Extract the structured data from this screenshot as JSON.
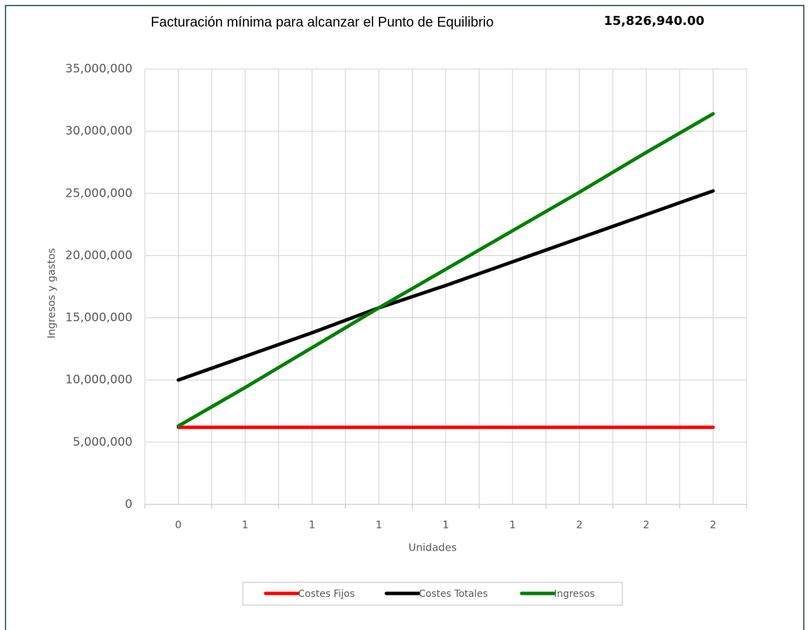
{
  "chart_data": {
    "type": "line",
    "title": "Facturación mínima para alcanzar el Punto de Equilibrio",
    "annotation": "15,826,940.00",
    "x_label": "Unidades",
    "y_label": "Ingresos y gastos",
    "categories": [
      "0",
      "1",
      "1",
      "1",
      "1",
      "1",
      "2",
      "2",
      "2"
    ],
    "series": [
      {
        "name": "Costes Fijos",
        "color": "#ff0000",
        "values": [
          6200000,
          6200000,
          6200000,
          6200000,
          6200000,
          6200000,
          6200000,
          6200000,
          6200000
        ]
      },
      {
        "name": "Costes Totales",
        "color": "#000000",
        "values": [
          10000000,
          11900000,
          13800000,
          15800000,
          17600000,
          19500000,
          21400000,
          23300000,
          25200000
        ]
      },
      {
        "name": "Ingresos",
        "color": "#008000",
        "values": [
          6300000,
          9400000,
          12600000,
          15800000,
          18900000,
          22000000,
          25100000,
          28300000,
          31400000
        ]
      }
    ],
    "ylim": [
      0,
      35000000
    ],
    "yticks": [
      0,
      {
        "value": 5000000,
        "label": "5,000,000"
      },
      {
        "value": 10000000,
        "label": "10,000,000"
      },
      {
        "value": 15000000,
        "label": "15,000,000"
      },
      {
        "value": 20000000,
        "label": "20,000,000"
      },
      {
        "value": 25000000,
        "label": "25,000,000"
      },
      {
        "value": 30000000,
        "label": "30,000,000"
      },
      {
        "value": 35000000,
        "label": "35,000,000"
      }
    ],
    "grid": true,
    "legend": "bottom"
  }
}
